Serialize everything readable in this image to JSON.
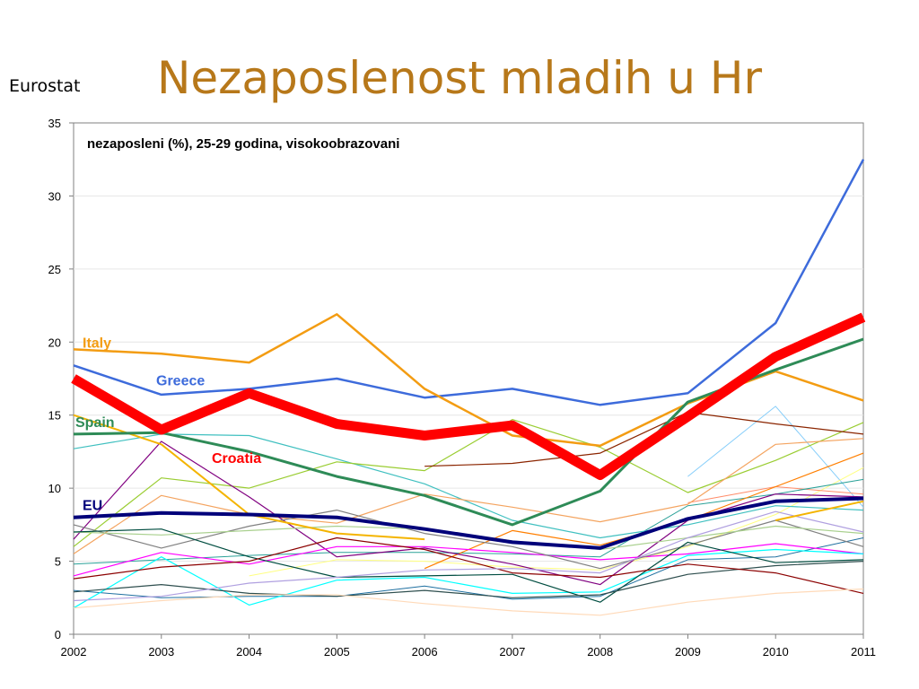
{
  "source": "Eurostat",
  "title": "Nezaposlenost mladih u Hr",
  "chart_data": {
    "type": "line",
    "title": "nezaposleni (%), 25-29 godina, visokoobrazovani",
    "xlabel": "",
    "ylabel": "",
    "x": [
      2002,
      2003,
      2004,
      2005,
      2006,
      2007,
      2008,
      2009,
      2010,
      2011
    ],
    "ylim": [
      0,
      35
    ],
    "yticks": [
      0,
      5,
      10,
      15,
      20,
      25,
      30,
      35
    ],
    "grid": true,
    "series": [
      {
        "name": "Croatia",
        "color": "#ff0000",
        "width": 11,
        "label_color": "#ff0000",
        "labeled": true,
        "values": [
          17.5,
          14.0,
          16.5,
          14.4,
          13.6,
          14.3,
          10.9,
          14.9,
          19.0,
          21.7
        ]
      },
      {
        "name": "Greece",
        "color": "#3d6bdb",
        "width": 2.5,
        "label_color": "#3d6bdb",
        "labeled": true,
        "values": [
          18.4,
          16.4,
          16.8,
          17.5,
          16.2,
          16.8,
          15.7,
          16.5,
          21.3,
          32.5
        ]
      },
      {
        "name": "Italy",
        "color": "#f39c12",
        "width": 2.5,
        "label_color": "#f39c12",
        "labeled": true,
        "values": [
          19.5,
          19.2,
          18.6,
          21.9,
          16.8,
          13.6,
          12.9,
          15.8,
          18.0,
          16.0
        ]
      },
      {
        "name": "Spain",
        "color": "#2e8b57",
        "width": 3,
        "label_color": "#2e8b57",
        "labeled": true,
        "values": [
          13.7,
          13.8,
          12.5,
          10.8,
          9.5,
          7.5,
          9.8,
          15.9,
          18.1,
          20.2
        ]
      },
      {
        "name": "EU",
        "color": "#00007a",
        "width": 4,
        "label_color": "#00007a",
        "labeled": true,
        "values": [
          8.0,
          8.3,
          8.2,
          8.0,
          7.2,
          6.3,
          5.9,
          7.9,
          9.1,
          9.3
        ]
      },
      {
        "color": "#40c0c0",
        "width": 1.2,
        "values": [
          12.7,
          13.7,
          13.6,
          12.0,
          10.3,
          7.8,
          6.6,
          7.5,
          8.8,
          8.5
        ]
      },
      {
        "color": "#f4b400",
        "width": 2,
        "values": [
          15.0,
          13.0,
          8.2,
          6.9,
          6.5,
          null,
          null,
          null,
          7.8,
          9.1
        ]
      },
      {
        "color": "#9acd32",
        "width": 1.2,
        "values": [
          6.0,
          10.7,
          10.0,
          11.8,
          11.2,
          14.7,
          12.8,
          9.7,
          11.9,
          14.5
        ]
      },
      {
        "color": "#8b2500",
        "width": 1.2,
        "values": [
          null,
          null,
          null,
          null,
          11.5,
          11.7,
          12.4,
          15.2,
          14.4,
          13.7
        ]
      },
      {
        "color": "#f4a460",
        "width": 1.2,
        "values": [
          5.5,
          9.5,
          8.2,
          7.6,
          9.6,
          8.7,
          7.7,
          8.9,
          13.0,
          13.4
        ]
      },
      {
        "color": "#ff7f00",
        "width": 1.2,
        "values": [
          null,
          null,
          null,
          null,
          4.5,
          7.1,
          6.1,
          7.8,
          10.1,
          12.4
        ]
      },
      {
        "color": "#800080",
        "width": 1.2,
        "values": [
          6.5,
          13.2,
          9.4,
          5.3,
          5.9,
          4.8,
          3.4,
          7.8,
          9.6,
          9.4
        ]
      },
      {
        "color": "#87cefa",
        "width": 1,
        "values": [
          null,
          null,
          null,
          null,
          null,
          null,
          null,
          10.8,
          15.6,
          8.7
        ]
      },
      {
        "color": "#ff00ff",
        "width": 1.2,
        "values": [
          4.0,
          5.6,
          4.8,
          6.0,
          6.0,
          5.6,
          5.1,
          5.5,
          6.2,
          5.5
        ]
      },
      {
        "color": "#808080",
        "width": 1.2,
        "values": [
          7.5,
          5.9,
          7.4,
          8.5,
          6.9,
          6.0,
          4.5,
          6.1,
          7.8,
          6.0
        ]
      },
      {
        "color": "#a9d08e",
        "width": 1.2,
        "values": [
          7.0,
          6.8,
          7.1,
          7.4,
          7.2,
          6.4,
          5.8,
          6.6,
          7.4,
          6.9
        ]
      },
      {
        "color": "#00ffff",
        "width": 1.2,
        "values": [
          1.8,
          5.3,
          2.0,
          3.7,
          3.9,
          2.8,
          2.9,
          5.4,
          5.8,
          5.5
        ]
      },
      {
        "color": "#004d40",
        "width": 1.2,
        "values": [
          7.0,
          7.2,
          5.3,
          3.9,
          4.0,
          4.1,
          2.2,
          6.3,
          4.9,
          5.1
        ]
      },
      {
        "color": "#2f4f4f",
        "width": 1.2,
        "values": [
          2.9,
          3.4,
          2.8,
          2.6,
          3.0,
          2.5,
          2.7,
          4.1,
          4.7,
          5.0
        ]
      },
      {
        "color": "#8b0000",
        "width": 1.2,
        "values": [
          3.8,
          4.6,
          5.0,
          6.6,
          5.8,
          4.2,
          3.9,
          4.8,
          4.2,
          2.8
        ]
      },
      {
        "color": "#b0a0e0",
        "width": 1.2,
        "values": [
          2.3,
          2.6,
          3.5,
          3.9,
          4.4,
          4.5,
          4.2,
          6.6,
          8.4,
          7.0
        ]
      },
      {
        "color": "#ffdab9",
        "width": 1.2,
        "values": [
          1.8,
          2.3,
          2.7,
          2.7,
          2.1,
          1.6,
          1.3,
          2.2,
          2.8,
          3.1
        ]
      },
      {
        "color": "#ffff80",
        "width": 1,
        "values": [
          null,
          null,
          4.0,
          5.1,
          5.0,
          4.6,
          4.4,
          6.0,
          8.2,
          11.4
        ]
      },
      {
        "color": "#1e6fa0",
        "width": 1,
        "values": [
          3.0,
          2.5,
          2.6,
          2.6,
          3.3,
          2.4,
          2.6,
          5.1,
          5.3,
          6.6
        ]
      },
      {
        "color": "#ff8c69",
        "width": 1,
        "values": [
          null,
          null,
          null,
          null,
          null,
          null,
          null,
          9.0,
          10.1,
          9.6
        ]
      },
      {
        "color": "#2aa198",
        "width": 1,
        "values": [
          4.8,
          5.1,
          5.4,
          5.6,
          5.6,
          5.5,
          5.3,
          8.8,
          9.6,
          10.6
        ]
      }
    ]
  }
}
